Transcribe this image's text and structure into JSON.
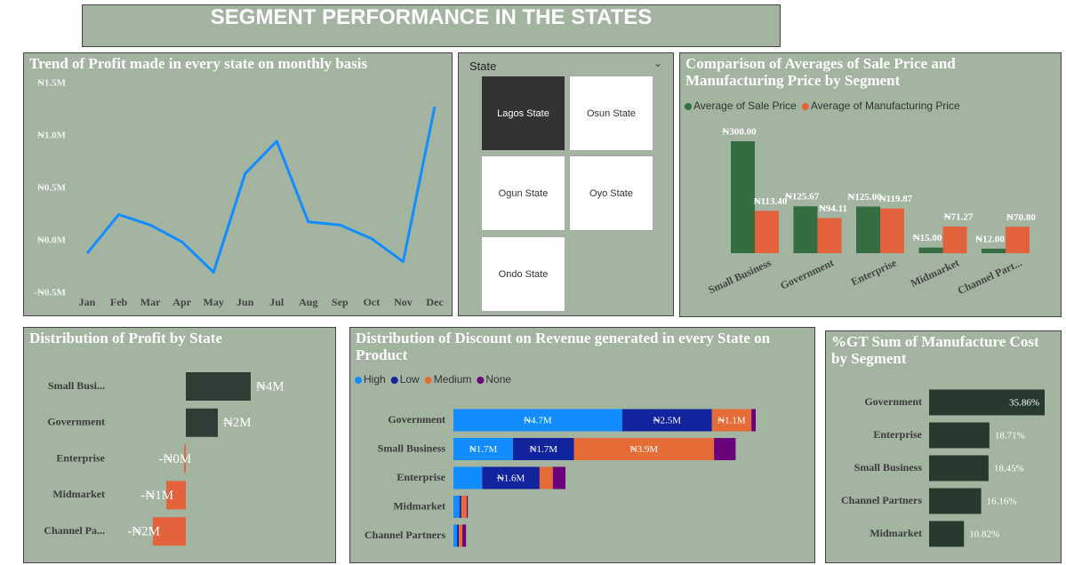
{
  "title": "SEGMENT PERFORMANCE IN THE STATES",
  "slicer": {
    "header": "State",
    "items": [
      "Lagos State",
      "Osun State",
      "Ogun State",
      "Oyo State",
      "Ondo State"
    ],
    "selected": 0
  },
  "chart_data": [
    {
      "type": "line",
      "title": "Trend of Profit made in every state on monthly basis",
      "categories": [
        "Jan",
        "Feb",
        "Mar",
        "Apr",
        "May",
        "Jun",
        "Jul",
        "Aug",
        "Sep",
        "Oct",
        "Nov",
        "Dec"
      ],
      "values": [
        -120000,
        250000,
        150000,
        -10000,
        -300000,
        640000,
        950000,
        180000,
        150000,
        20000,
        -200000,
        1280000
      ],
      "color": "#118dff",
      "ylim": [
        -500000,
        1500000
      ],
      "yticks": [
        {
          "value": -500000,
          "label": "-₦0.5M"
        },
        {
          "value": 0,
          "label": "₦0.0M"
        },
        {
          "value": 500000,
          "label": "₦0.5M"
        },
        {
          "value": 1000000,
          "label": "₦1.0M"
        },
        {
          "value": 1500000,
          "label": "₦1.5M"
        }
      ]
    },
    {
      "type": "bar",
      "title": "Comparison of Averages of Sale Price and Manufacturing Price by Segment",
      "categories": [
        "Small Business",
        "Government",
        "Enterprise",
        "Midmarket",
        "Channel Part..."
      ],
      "series": [
        {
          "name": "Average of Sale Price",
          "color": "#336d41",
          "values": [
            300,
            125.67,
            125,
            15,
            12
          ],
          "value_labels": [
            "₦300.00",
            "₦125.67",
            "₦125.00",
            "₦15.00",
            "₦12.00"
          ]
        },
        {
          "name": "Average of Manufacturing Price",
          "color": "#e1623b",
          "values": [
            113.4,
            94.11,
            119.87,
            71.27,
            70.8
          ],
          "value_labels": [
            "₦113.40",
            "₦94.11",
            "₦119.87",
            "₦71.27",
            "₦70.80"
          ]
        }
      ]
    },
    {
      "type": "hbar",
      "title": "Distribution of Profit by State",
      "categories": [
        "Small Busi...",
        "Government",
        "Enterprise",
        "Midmarket",
        "Channel Pa..."
      ],
      "values": [
        4000000,
        1970000,
        -100000,
        -1200000,
        -2030000
      ],
      "value_labels": [
        "₦4M",
        "₦2M",
        "-₦0M",
        "-₦1M",
        "-₦2M"
      ],
      "color": "#2e3d36",
      "negative_color": "#e1623b"
    },
    {
      "type": "stacked-hbar",
      "title": "Distribution of Discount on Revenue generated in every State on Product",
      "categories": [
        "Government",
        "Small Business",
        "Enterprise",
        "Midmarket",
        "Channel Partners"
      ],
      "series": [
        {
          "name": "High",
          "color": "#118dff",
          "values": [
            4700000,
            1660000,
            800000,
            170000,
            100000
          ],
          "value_labels": [
            "₦4.7M",
            "₦1.7M",
            null,
            null,
            null
          ]
        },
        {
          "name": "Low",
          "color": "#12239e",
          "values": [
            2500000,
            1700000,
            1600000,
            50000,
            50000
          ],
          "value_labels": [
            "₦2.5M",
            "₦1.7M",
            "₦1.6M",
            null,
            null
          ]
        },
        {
          "name": "Medium",
          "color": "#e66c37",
          "values": [
            1100000,
            3900000,
            370000,
            150000,
            100000
          ],
          "value_labels": [
            "₦1.1M",
            "₦3.9M",
            null,
            null,
            null
          ]
        },
        {
          "name": "None",
          "color": "#6b007b",
          "values": [
            120000,
            600000,
            350000,
            30000,
            100000
          ]
        }
      ]
    },
    {
      "type": "hbar",
      "title": "%GT Sum of Manufacture Cost by Segment",
      "categories": [
        "Government",
        "Enterprise",
        "Small Business",
        "Channel Partners",
        "Midmarket"
      ],
      "values": [
        35.86,
        18.71,
        18.45,
        16.16,
        10.82
      ],
      "value_labels": [
        "35.86%",
        "18.71%",
        "18.45%",
        "16.16%",
        "10.82%"
      ],
      "color": "#263a2e",
      "negative_color": "#e1623b"
    }
  ]
}
